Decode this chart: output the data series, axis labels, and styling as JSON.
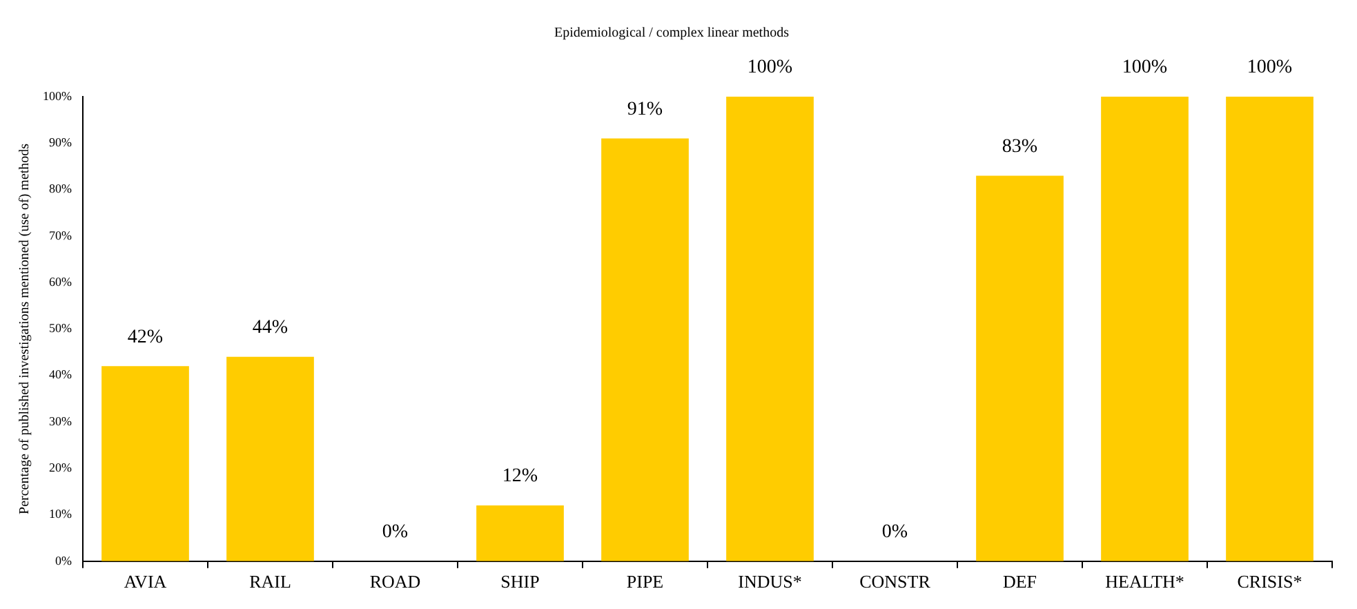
{
  "chart_data": {
    "type": "bar",
    "title": "Epidemiological / complex linear methods",
    "ylabel": "Percentage of published investigations mentioned (use of) methods",
    "categories": [
      "AVIA",
      "RAIL",
      "ROAD",
      "SHIP",
      "PIPE",
      "INDUS*",
      "CONSTR",
      "DEF",
      "HEALTH*",
      "CRISIS*"
    ],
    "values": [
      42,
      44,
      0,
      12,
      91,
      100,
      0,
      83,
      100,
      100
    ],
    "value_labels": [
      "42%",
      "44%",
      "0%",
      "12%",
      "91%",
      "100%",
      "0%",
      "83%",
      "100%",
      "100%"
    ],
    "color": "#ffcc00",
    "ylim": [
      0,
      100
    ],
    "yticks": [
      {
        "value": 0,
        "label": "0%"
      },
      {
        "value": 10,
        "label": "10%"
      },
      {
        "value": 20,
        "label": "20%"
      },
      {
        "value": 30,
        "label": "30%"
      },
      {
        "value": 40,
        "label": "40%"
      },
      {
        "value": 50,
        "label": "50%"
      },
      {
        "value": 60,
        "label": "60%"
      },
      {
        "value": 70,
        "label": "70%"
      },
      {
        "value": 80,
        "label": "80%"
      },
      {
        "value": 90,
        "label": "90%"
      },
      {
        "value": 100,
        "label": "100%"
      }
    ],
    "grid": false,
    "legend": false
  }
}
